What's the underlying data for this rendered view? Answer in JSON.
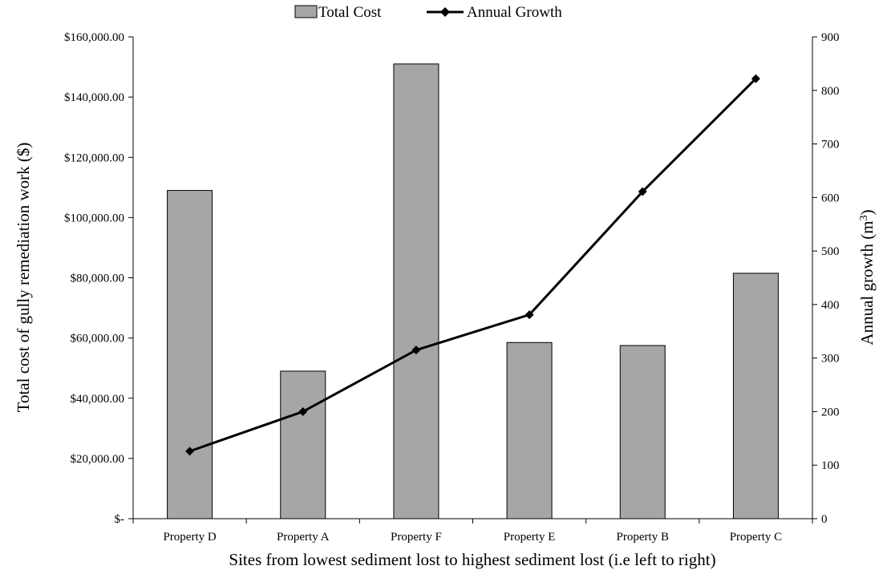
{
  "chart_data": {
    "type": "bar+line",
    "categories": [
      "Property D",
      "Property A",
      "Property F",
      "Property E",
      "Property B",
      "Property C"
    ],
    "series": [
      {
        "name": "Total Cost",
        "type": "bar",
        "axis": "left",
        "values": [
          109000,
          49000,
          151000,
          58500,
          57500,
          81500
        ],
        "color": "#a6a6a6"
      },
      {
        "name": "Annual Growth",
        "type": "line",
        "axis": "right",
        "values": [
          126,
          200,
          315,
          381,
          611,
          822
        ],
        "color": "#000000"
      }
    ],
    "xlabel": "Sites from lowest sediment lost to  highest  sediment lost (i.e left to right)",
    "ylabel_left": "Total cost of gully remediation work ($)",
    "ylabel_right_prefix": "Annual growth (m",
    "ylabel_right_sup": "3",
    "ylabel_right_suffix": ")",
    "ylim_left": [
      0,
      160000
    ],
    "ylim_right": [
      0,
      900
    ],
    "yticks_left": [
      "$-",
      "$20,000.00",
      "$40,000.00",
      "$60,000.00",
      "$80,000.00",
      "$100,000.00",
      "$120,000.00",
      "$140,000.00",
      "$160,000.00"
    ],
    "yticks_right": [
      "0",
      "100",
      "200",
      "300",
      "400",
      "500",
      "600",
      "700",
      "800",
      "900"
    ],
    "legend": [
      "Total Cost",
      "Annual Growth"
    ],
    "legend_position": "top-center",
    "grid": false
  }
}
